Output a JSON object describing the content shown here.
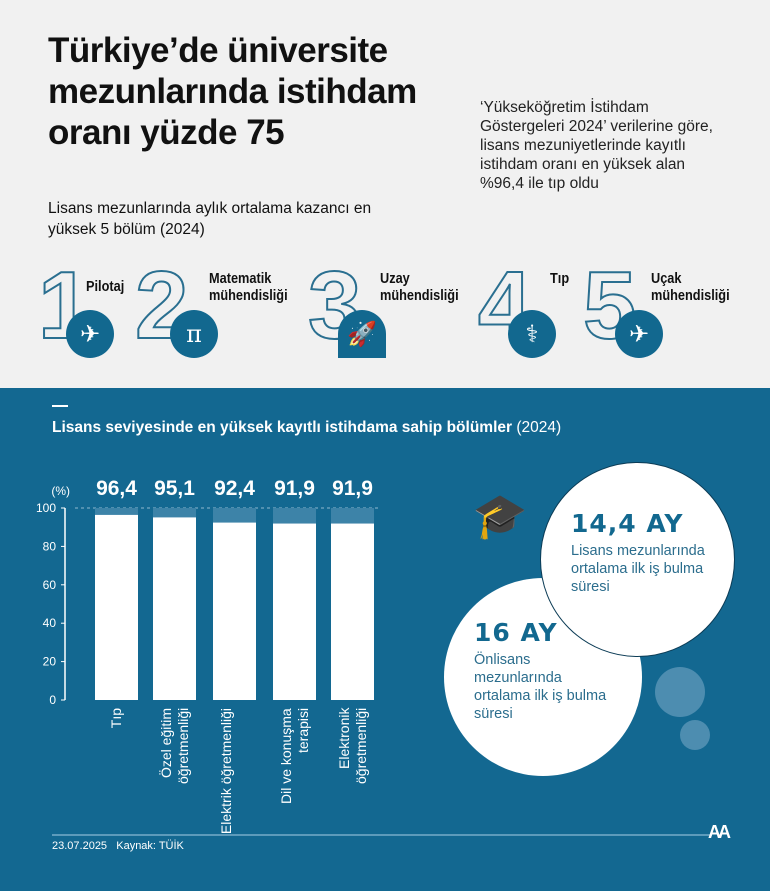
{
  "title": "Türkiye’de üniversite mezunlarında istihdam oranı yüzde 75",
  "quote": "‘Yükseköğretim İstihdam Göstergeleri 2024’ verilerine göre, lisans mezuniyetlerinde kayıtlı istihdam oranı en yüksek alan %96,4 ile tıp oldu",
  "subtitle": "Lisans mezunlarında aylık ortalama kazancı en yüksek 5 bölüm (2024)",
  "top5": [
    {
      "rank": "1",
      "label": "Pilotaj",
      "icon": "pilot-icon"
    },
    {
      "rank": "2",
      "label": "Matematik mühendisliği",
      "icon": "pi-icon"
    },
    {
      "rank": "3",
      "label": "Uzay mühendisliği",
      "icon": "rocket-icon"
    },
    {
      "rank": "4",
      "label": "Tıp",
      "icon": "doctor-icon"
    },
    {
      "rank": "5",
      "label": "Uçak mühendisliği",
      "icon": "airplane-icon"
    }
  ],
  "chart_data": {
    "type": "bar",
    "title": "Lisans seviyesinde en yüksek kayıtlı istihdama sahip bölümler",
    "title_year": "(2024)",
    "ylabel": "(%)",
    "ylim": [
      0,
      100
    ],
    "yticks": [
      "0",
      "20",
      "40",
      "60",
      "80",
      "100"
    ],
    "categories": [
      "Tıp",
      "Özel eğitim öğretmenliği",
      "Elektrik öğretmenliği",
      "Dil ve konuşma terapisi",
      "Elektronik öğretmenliği"
    ],
    "values": [
      96.4,
      95.1,
      92.4,
      91.9,
      91.9
    ],
    "value_labels": [
      "96,4",
      "95,1",
      "92,4",
      "91,9",
      "91,9"
    ],
    "grid": false
  },
  "stats": [
    {
      "value": "14,4 AY",
      "text": "Lisans mezunlarında ortalama ilk iş bulma süresi"
    },
    {
      "value": "16 AY",
      "text": "Önlisans mezunlarında ortalama ilk iş bulma süresi"
    }
  ],
  "footer": {
    "date": "23.07.2025",
    "source": "Kaynak: TÜİK",
    "logo": "AA"
  },
  "colors": {
    "blue": "#136891",
    "background": "#f1f1f1",
    "bar": "#ffffff"
  }
}
